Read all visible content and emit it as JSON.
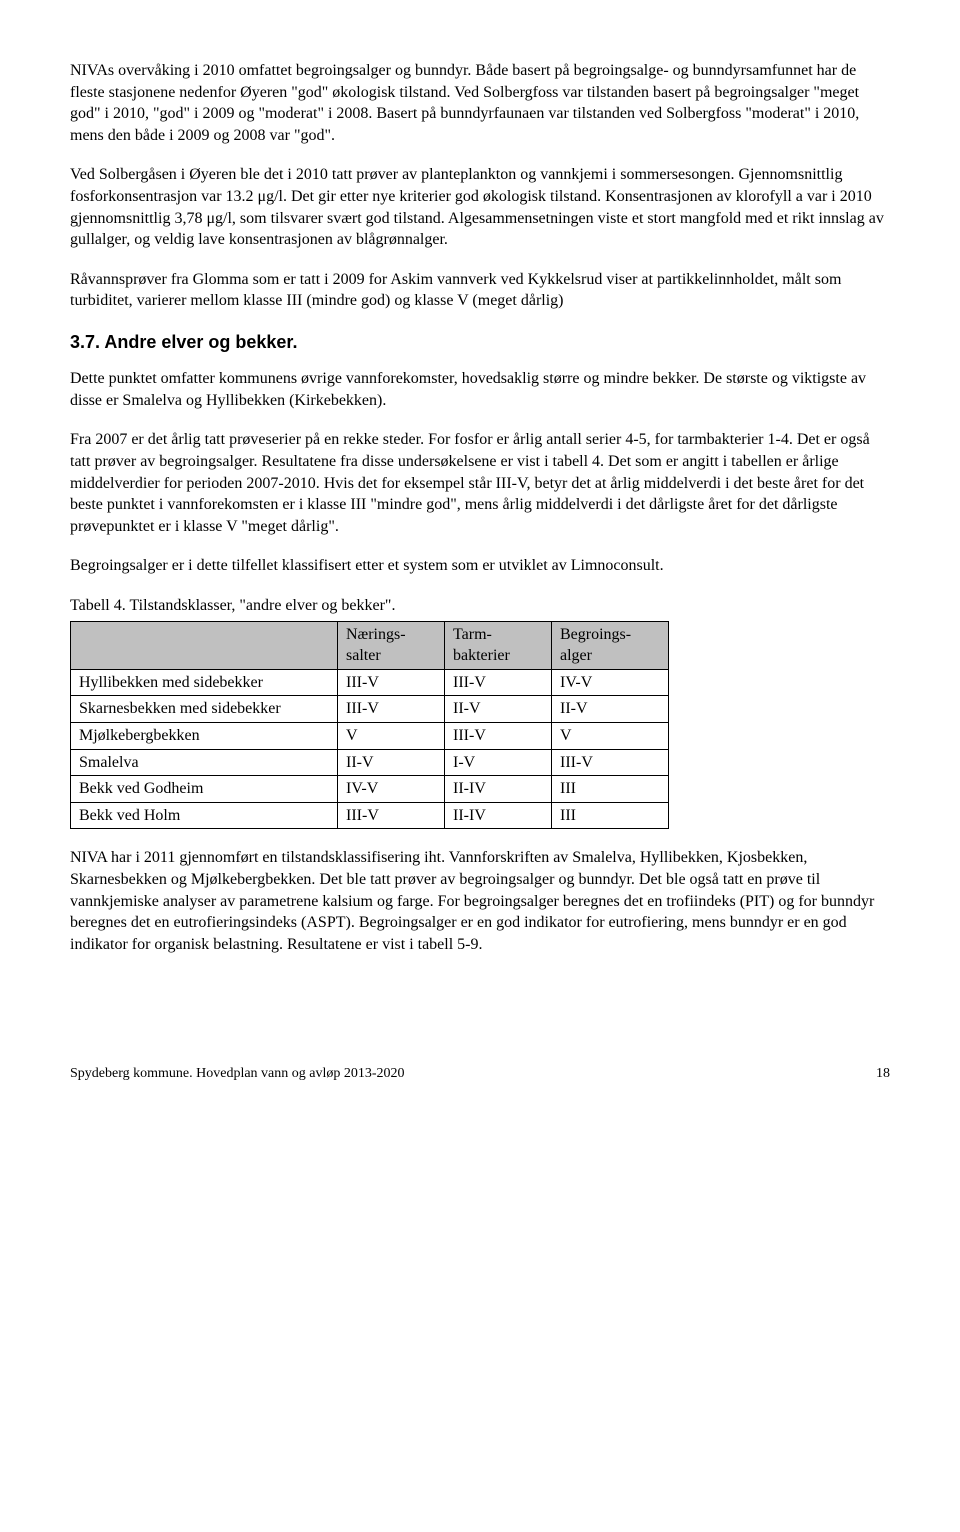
{
  "para1": "NIVAs overvåking i 2010 omfattet begroingsalger og bunndyr. Både basert på begroingsalge- og bunndyrsamfunnet har de fleste stasjonene nedenfor Øyeren \"god\" økologisk tilstand. Ved Solbergfoss var tilstanden basert på begroingsalger \"meget god\" i 2010, \"god\" i 2009 og \"moderat\" i 2008. Basert på bunndyrfaunaen var tilstanden ved Solbergfoss \"moderat\" i 2010, mens den både i 2009 og 2008 var \"god\".",
  "para2": "Ved Solbergåsen i Øyeren ble det i 2010 tatt prøver av planteplankton og vannkjemi i sommersesongen. Gjennomsnittlig fosforkonsentrasjon var 13.2 μg/l. Det gir etter nye kriterier god økologisk tilstand. Konsentrasjonen av klorofyll a var i 2010 gjennomsnittlig 3,78 μg/l, som tilsvarer svært god tilstand. Algesammensetningen viste et stort mangfold med et rikt innslag av gullalger, og veldig lave konsentrasjonen av blågrønnalger.",
  "para3": "Råvannsprøver fra Glomma som er tatt i 2009 for Askim vannverk ved Kykkelsrud viser at partikkelinnholdet, målt som turbiditet, varierer mellom klasse III (mindre god) og klasse V (meget dårlig)",
  "section_title": "3.7. Andre elver og bekker.",
  "para4": "Dette punktet omfatter kommunens øvrige vannforekomster, hovedsaklig større og mindre bekker. De største og viktigste av disse er Smalelva og Hyllibekken (Kirkebekken).",
  "para5": "Fra 2007 er det årlig tatt prøveserier på en rekke steder. For fosfor er årlig antall serier 4-5, for tarmbakterier 1-4. Det er også tatt prøver av begroingsalger. Resultatene fra disse undersøkelsene er vist i tabell 4. Det som er angitt i tabellen er årlige middelverdier for perioden 2007-2010. Hvis det for eksempel står III-V, betyr det at årlig middelverdi i det beste året for det beste punktet i vannforekomsten er i klasse III \"mindre god\", mens årlig middelverdi i det dårligste året for det dårligste prøvepunktet er i klasse V \"meget dårlig\".",
  "para6": "Begroingsalger er i dette tilfellet klassifisert etter et system som er utviklet av Limnoconsult.",
  "table_caption": "Tabell 4. Tilstandsklasser, \"andre elver og bekker\".",
  "table": {
    "headers": [
      "",
      "Nærings-\nsalter",
      "Tarm-\nbakterier",
      "Begroings-\nalger"
    ],
    "rows": [
      [
        "Hyllibekken med sidebekker",
        "III-V",
        "III-V",
        "IV-V"
      ],
      [
        "Skarnesbekken med sidebekker",
        "III-V",
        "II-V",
        "II-V"
      ],
      [
        "Mjølkebergbekken",
        "V",
        "III-V",
        "V"
      ],
      [
        "Smalelva",
        "II-V",
        "I-V",
        "III-V"
      ],
      [
        "Bekk ved Godheim",
        "IV-V",
        "II-IV",
        "III"
      ],
      [
        "Bekk ved Holm",
        "III-V",
        "II-IV",
        "III"
      ]
    ],
    "col_widths": [
      "250px",
      "90px",
      "90px",
      "100px"
    ],
    "header_bg": "#c0c0c0"
  },
  "para7": "NIVA har i 2011 gjennomført en tilstandsklassifisering iht. Vannforskriften av Smalelva, Hyllibekken, Kjosbekken, Skarnesbekken og Mjølkebergbekken. Det ble tatt prøver av begroingsalger og bunndyr. Det ble også tatt en prøve til vannkjemiske analyser av parametrene kalsium og farge. For begroingsalger beregnes det en trofiindeks (PIT) og for bunndyr beregnes det en eutrofieringsindeks (ASPT). Begroingsalger er en god indikator for eutrofiering, mens bunndyr er en god indikator for organisk belastning. Resultatene er vist i tabell 5-9.",
  "footer_left": "Spydeberg kommune. Hovedplan vann og avløp 2013-2020",
  "footer_page": "18"
}
